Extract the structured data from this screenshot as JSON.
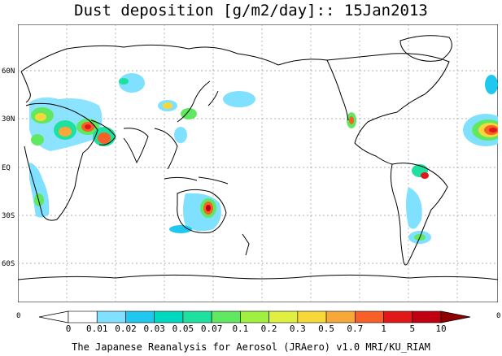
{
  "title": "Dust deposition [g/m2/day]:: 15Jan2013",
  "footer": "The Japanese Reanalysis for Aerosol (JRAero) v1.0 MRI/KU_RIAM",
  "lat_labels": [
    "60N",
    "30N",
    "EQ",
    "30S",
    "60S"
  ],
  "colorbar": {
    "end_labels": [
      "0",
      "0"
    ],
    "ticks": [
      "0",
      "0.01",
      "0.02",
      "0.03",
      "0.05",
      "0.07",
      "0.1",
      "0.2",
      "0.3",
      "0.5",
      "0.7",
      "1",
      "5",
      "10"
    ],
    "colors": [
      "#ffffff",
      "#7fe0ff",
      "#20c8f0",
      "#00d8c0",
      "#20e0a0",
      "#60e860",
      "#a0f040",
      "#e0f040",
      "#f8d838",
      "#f8a838",
      "#f86028",
      "#e01818",
      "#c00010",
      "#900000"
    ]
  }
}
